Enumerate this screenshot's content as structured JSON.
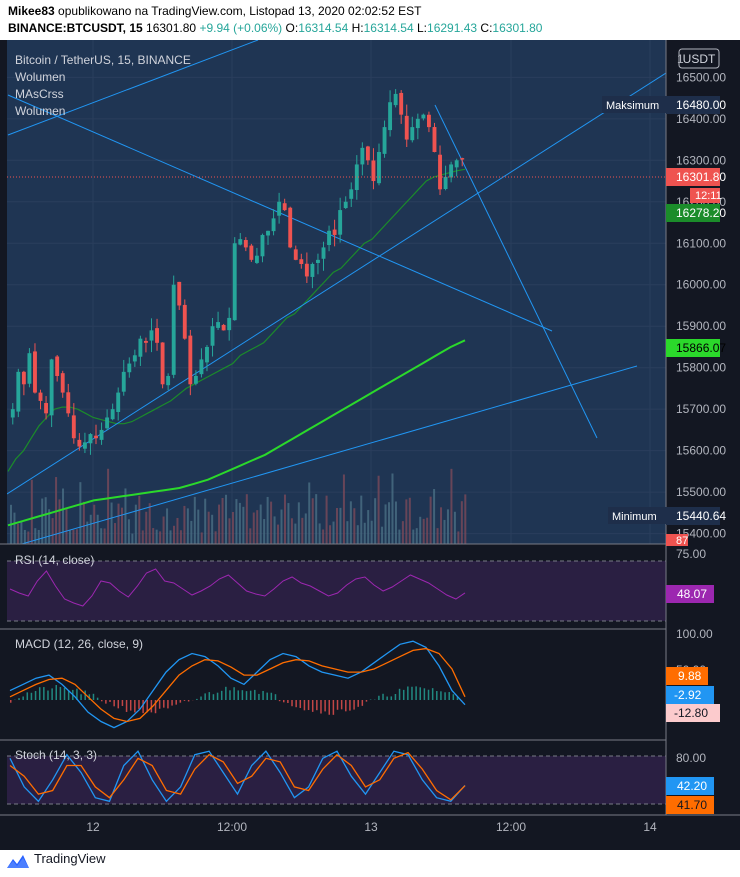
{
  "header": {
    "author": "Mikee83",
    "published": "opublikowano na TradingView.com, Listopad 13, 2020 02:02:52 EST",
    "symbol": "BINANCE:BTCUSDT, 15",
    "price": "16301.80",
    "change": "+9.94 (+0.06%)",
    "o_label": "O:",
    "o_value": "16314.54",
    "h_label": "H:",
    "h_value": "16314.54",
    "l_label": "L:",
    "l_value": "16291.43",
    "c_label": "C:",
    "c_value": "16301.80"
  },
  "legend": {
    "title": "Bitcoin / TetherUS, 15, BINANCE",
    "items": [
      "Wolumen",
      "MAsCrss",
      "Wolumen"
    ]
  },
  "currency_badge": "USDT",
  "labels": {
    "max_text": "Maksimum",
    "min_text": "Minimum",
    "top_clipped": "1",
    "volume_tag": "87",
    "countdown": "12:11"
  },
  "footer": {
    "brand": "TradingView"
  },
  "colors": {
    "bg": "#131722",
    "pane": "#1f3553",
    "up": "#26a69a",
    "down": "#ef5350",
    "trend": "#2196f3",
    "ma_fast": "#1b8c2a",
    "ma_slow": "#2bd92b",
    "rsi": "#9c27b0",
    "macd": "#2196f3",
    "signal": "#ff6d00",
    "stoch_k": "#2196f3",
    "stoch_d": "#ff6d00"
  },
  "chart_data": [
    {
      "type": "candlestick",
      "title": "Bitcoin / TetherUS, 15, BINANCE",
      "ylim": [
        15375,
        16590
      ],
      "yticks": [
        15400,
        15500,
        15600,
        15700,
        15800,
        15900,
        16000,
        16100,
        16200,
        16300,
        16400,
        16500
      ],
      "ytick_labels": [
        "15400.00",
        "15500.00",
        "15600.00",
        "15700.00",
        "15800.00",
        "15900.00",
        "16000.00",
        "16100.00",
        "16200.00",
        "16300.00",
        "16400.00",
        "16500.00"
      ],
      "x_labels": [
        "12",
        "12:00",
        "13",
        "12:00",
        "14"
      ],
      "close_series": [
        15700,
        15790,
        15760,
        15835,
        15740,
        15720,
        15690,
        15820,
        15780,
        15740,
        15690,
        15630,
        15610,
        15620,
        15640,
        15630,
        15650,
        15680,
        15700,
        15740,
        15790,
        15810,
        15830,
        15870,
        15860,
        15890,
        15860,
        15760,
        15780,
        16000,
        15950,
        15870,
        15760,
        15780,
        15820,
        15850,
        15900,
        15910,
        15890,
        15920,
        16100,
        16110,
        16090,
        16060,
        16070,
        16120,
        16130,
        16160,
        16200,
        16180,
        16090,
        16060,
        16050,
        16020,
        16050,
        16060,
        16090,
        16130,
        16120,
        16180,
        16200,
        16230,
        16290,
        16330,
        16300,
        16250,
        16320,
        16380,
        16440,
        16460,
        16410,
        16350,
        16380,
        16400,
        16410,
        16380,
        16320,
        16230,
        16260,
        16290,
        16300,
        16301.8
      ],
      "ma_fast": [
        15550,
        15580,
        15600,
        15630,
        15660,
        15680,
        15700,
        15705,
        15705,
        15700,
        15690,
        15680,
        15675,
        15670,
        15665,
        15665,
        15670,
        15680,
        15690,
        15700,
        15710,
        15720,
        15735,
        15750,
        15760,
        15770,
        15780,
        15790,
        15800,
        15810,
        15830,
        15840,
        15850,
        15860,
        15880,
        15900,
        15920,
        15930,
        15950,
        15970,
        15990,
        16010,
        16030,
        16040,
        16060,
        16080,
        16100,
        16110,
        16130,
        16150,
        16170,
        16190,
        16210,
        16230,
        16250,
        16260,
        16265,
        16270,
        16275,
        16278.2
      ],
      "ma_slow": [
        15420,
        15430,
        15440,
        15450,
        15460,
        15470,
        15480,
        15485,
        15490,
        15495,
        15500,
        15505,
        15510,
        15520,
        15530,
        15545,
        15560,
        15575,
        15590,
        15610,
        15630,
        15650,
        15670,
        15690,
        15710,
        15730,
        15750,
        15770,
        15790,
        15810,
        15830,
        15850,
        15866.07
      ],
      "trend_lines": [
        "upper channel",
        "lower channel",
        "outer line",
        "descending line",
        "top resistance"
      ],
      "price_labels": [
        {
          "text": "16480.00",
          "kind": "Maksimum"
        },
        {
          "text": "16301.80",
          "kind": "last price"
        },
        {
          "text": "16278.20",
          "kind": "MA"
        },
        {
          "text": "15866.07",
          "kind": "MA"
        },
        {
          "text": "15440.64",
          "kind": "Minimum"
        }
      ]
    },
    {
      "type": "line",
      "title": "RSI (14, close)",
      "levels": [
        70,
        30
      ],
      "level_labels": [
        "75.00"
      ],
      "last_value_label": "48.07",
      "values": [
        52,
        48,
        45,
        60,
        70,
        55,
        42,
        38,
        35,
        45,
        60,
        58,
        50,
        44,
        55,
        68,
        72,
        60,
        58,
        52,
        46,
        50,
        55,
        62,
        66,
        58,
        50,
        47,
        45,
        52,
        60,
        64,
        58,
        55,
        50,
        45,
        48,
        56,
        62,
        64,
        56,
        50,
        54,
        60,
        66,
        62,
        58,
        52,
        46,
        42,
        48.07
      ]
    },
    {
      "type": "line",
      "title": "MACD (12, 26, close, 9)",
      "level_labels": [
        "100.00",
        "50.00"
      ],
      "last_value_labels": [
        "9.88",
        "-2.92",
        "-12.80"
      ],
      "macd": [
        20,
        30,
        40,
        45,
        30,
        10,
        -15,
        -30,
        -40,
        -30,
        -10,
        20,
        50,
        70,
        80,
        75,
        60,
        40,
        30,
        50,
        70,
        80,
        75,
        60,
        50,
        45,
        40,
        50,
        65,
        80,
        95,
        100,
        90,
        60,
        20,
        -2.92
      ],
      "signal": [
        10,
        20,
        30,
        38,
        40,
        30,
        10,
        -10,
        -25,
        -30,
        -25,
        -5,
        20,
        45,
        60,
        70,
        68,
        58,
        45,
        45,
        55,
        65,
        70,
        68,
        60,
        55,
        50,
        50,
        55,
        65,
        75,
        85,
        88,
        80,
        55,
        9.88
      ]
    },
    {
      "type": "line",
      "title": "Stoch (14, 3, 3)",
      "level_labels": [
        "80.00"
      ],
      "last_value_labels": [
        "42.20",
        "41.70"
      ],
      "k": [
        80,
        40,
        20,
        50,
        85,
        60,
        25,
        20,
        70,
        90,
        50,
        20,
        40,
        85,
        90,
        60,
        30,
        70,
        90,
        60,
        25,
        40,
        80,
        90,
        55,
        30,
        60,
        90,
        85,
        50,
        25,
        20,
        42.2
      ],
      "d": [
        70,
        55,
        30,
        35,
        70,
        70,
        40,
        25,
        50,
        80,
        70,
        35,
        30,
        65,
        85,
        75,
        45,
        55,
        80,
        75,
        40,
        35,
        65,
        85,
        70,
        40,
        50,
        80,
        88,
        65,
        35,
        22,
        41.7
      ]
    }
  ]
}
